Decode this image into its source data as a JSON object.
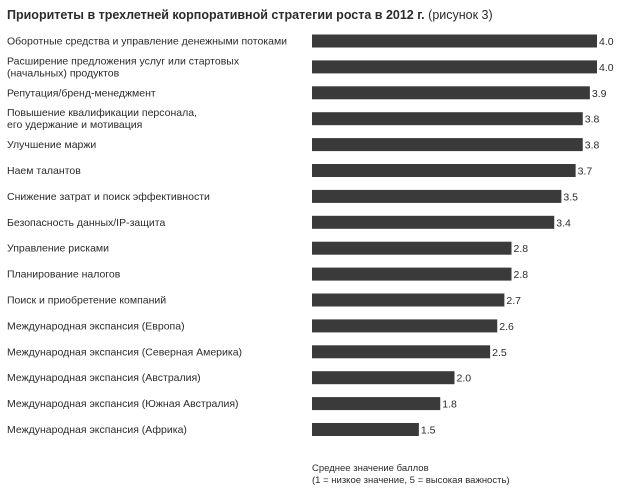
{
  "title": {
    "bold": "Приоритеты в трехлетней корпоративной стратегии роста в 2012 г.",
    "suffix": "(рисунок 3)"
  },
  "axis_note": {
    "line1": "Среднее значение баллов",
    "line2": "(1 = низкое значение, 5 = высокая важность)"
  },
  "colors": {
    "bar": "#3a3a3a",
    "text": "#2b2b2b"
  },
  "chart_data": {
    "type": "bar",
    "orientation": "horizontal",
    "categories": [
      [
        "Оборотные средства и управление денежными потоками"
      ],
      [
        "Расширение предложения услуг или стартовых",
        "(начальных) продуктов"
      ],
      [
        "Репутация/бренд-менеджмент"
      ],
      [
        "Повышение квалификации персонала,",
        "его удержание и мотивация"
      ],
      [
        "Улучшение маржи"
      ],
      [
        "Наем талантов"
      ],
      [
        "Снижение затрат и поиск эффективности"
      ],
      [
        "Безопасность данных/IP-защита"
      ],
      [
        "Управление рисками"
      ],
      [
        "Планирование налогов"
      ],
      [
        "Поиск и приобретение компаний"
      ],
      [
        "Международная экспансия (Европа)"
      ],
      [
        "Международная экспансия (Северная Америка)"
      ],
      [
        "Международная экспансия (Австралия)"
      ],
      [
        "Международная экспансия (Южная Австралия)"
      ],
      [
        "Международная экспансия (Африка)"
      ]
    ],
    "values": [
      4.0,
      4.0,
      3.9,
      3.8,
      3.8,
      3.7,
      3.5,
      3.4,
      2.8,
      2.8,
      2.7,
      2.6,
      2.5,
      2.0,
      1.8,
      1.5
    ],
    "value_labels": [
      "4.0",
      "4.0",
      "3.9",
      "3.8",
      "3.8",
      "3.7",
      "3.5",
      "3.4",
      "2.8",
      "2.8",
      "2.7",
      "2.6",
      "2.5",
      "2.0",
      "1.8",
      "1.5"
    ],
    "xlim": [
      0,
      4.0
    ],
    "grid": false,
    "legend": "none"
  }
}
